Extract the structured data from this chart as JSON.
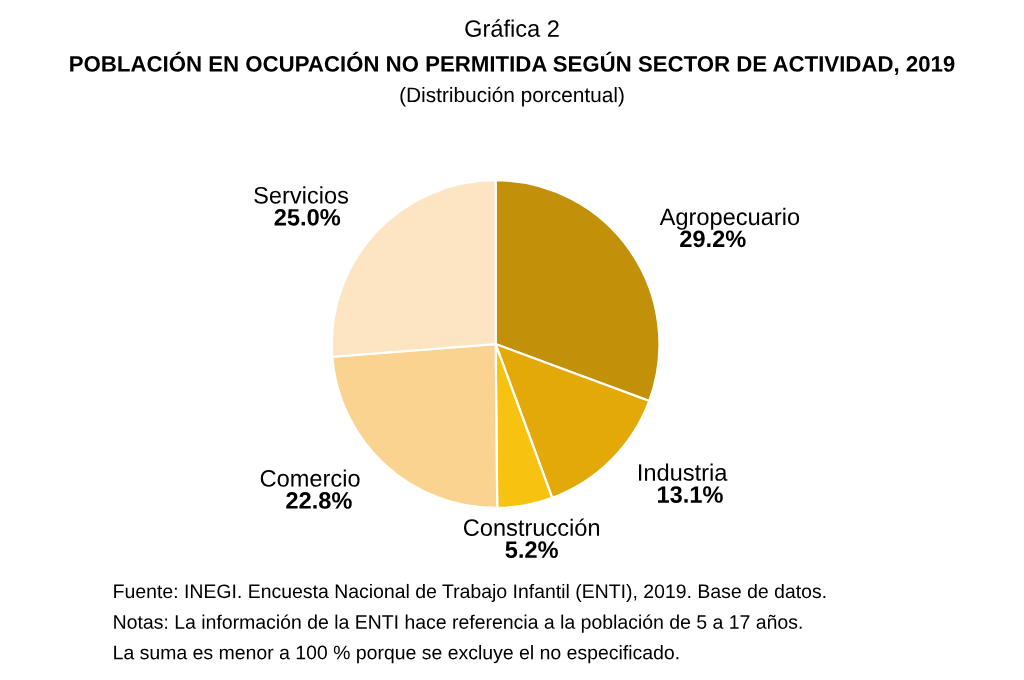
{
  "chart_data": {
    "type": "pie",
    "title": "POBLACIÓN EN OCUPACIÓN NO PERMITIDA SEGÚN SECTOR DE ACTIVIDAD, 2019",
    "subtitle": "(Distribución porcentual)",
    "categories": [
      "Agropecuario",
      "Industria",
      "Construcción",
      "Comercio",
      "Servicios"
    ],
    "values": [
      29.2,
      13.1,
      5.2,
      22.8,
      25.0
    ],
    "value_labels": [
      "29.2%",
      "13.1%",
      "5.2%",
      "22.8%",
      "25.0%"
    ],
    "colors": [
      "#c39109",
      "#e2a908",
      "#f8c310",
      "#fbd390",
      "#fde4c3"
    ],
    "annotations": [
      "Gráfica 2",
      "Fuente: INEGI. Encuesta Nacional de Trabajo Infantil (ENTI), 2019. Base de datos.",
      "Notas: La información de la ENTI hace referencia a la población de 5 a 17 años.",
      "La suma es menor a 100 % porque se excluye el no especificado."
    ]
  }
}
